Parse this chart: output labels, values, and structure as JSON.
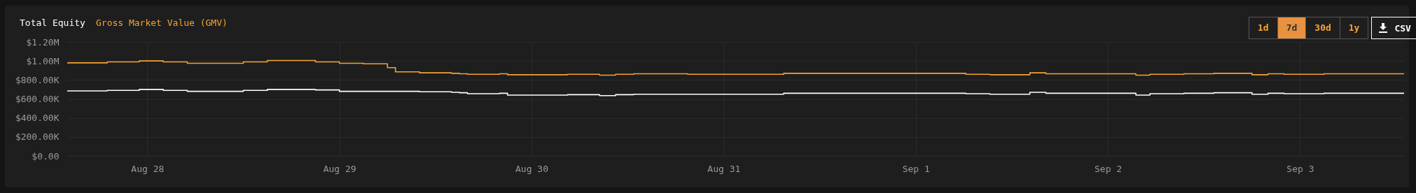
{
  "chart_data": {
    "type": "step",
    "x": [
      "--08-27T14:00",
      "--08-27T19:00",
      "--08-27T23:00",
      "--08-28T02:00",
      "--08-28T05:00",
      "--08-28T12:00",
      "--08-28T15:00",
      "--08-28T21:00",
      "--08-29T00:00",
      "--08-29T03:00",
      "--08-29T06:00",
      "--08-29T07:00",
      "--08-29T10:00",
      "--08-29T14:00",
      "--08-29T15:00",
      "--08-29T16:00",
      "--08-29T20:00",
      "--08-29T21:00",
      "--08-30T04:30",
      "--08-30T08:30",
      "--08-30T10:30",
      "--08-30T12:45",
      "--08-30T19:30",
      "--08-31T07:30",
      "--09-01T06:15",
      "--09-01T09:15",
      "--09-01T14:15",
      "--09-01T16:15",
      "--09-02T03:30",
      "--09-02T05:15",
      "--09-02T09:30",
      "--09-02T13:15",
      "--09-02T18:00",
      "--09-02T20:00",
      "--09-02T22:00",
      "--09-03T03:00",
      "--09-03T13:00"
    ],
    "series": [
      {
        "name": "Total Equity",
        "color": "#ffffff",
        "values": [
          685000,
          690000,
          700000,
          690000,
          680000,
          690000,
          700000,
          695000,
          680000,
          680000,
          680000,
          680000,
          675000,
          670000,
          665000,
          655000,
          660000,
          640000,
          645000,
          635000,
          645000,
          650000,
          650000,
          660000,
          655000,
          650000,
          670000,
          660000,
          640000,
          655000,
          660000,
          665000,
          650000,
          660000,
          655000,
          660000,
          660000
        ]
      },
      {
        "name": "Gross Market Value (GMV)",
        "color": "#f7a233",
        "values": [
          980000,
          990000,
          1000000,
          990000,
          975000,
          990000,
          1005000,
          990000,
          975000,
          970000,
          930000,
          885000,
          875000,
          870000,
          865000,
          860000,
          865000,
          855000,
          860000,
          850000,
          860000,
          865000,
          860000,
          870000,
          860000,
          855000,
          875000,
          865000,
          850000,
          860000,
          865000,
          870000,
          855000,
          865000,
          860000,
          865000,
          865000
        ]
      }
    ],
    "xlim": [
      "--08-27T14:00",
      "--09-03T13:00"
    ],
    "xticks": [
      {
        "value": "--08-28",
        "label": "Aug 28"
      },
      {
        "value": "--08-29",
        "label": "Aug 29"
      },
      {
        "value": "--08-30",
        "label": "Aug 30"
      },
      {
        "value": "--08-31",
        "label": "Aug 31"
      },
      {
        "value": "--09-01",
        "label": "Sep 1"
      },
      {
        "value": "--09-02",
        "label": "Sep 2"
      },
      {
        "value": "--09-03",
        "label": "Sep 3"
      }
    ],
    "ylim": [
      0,
      1200000
    ],
    "yticks": [
      {
        "value": 0,
        "label": "$0.00"
      },
      {
        "value": 200000,
        "label": "$200.00K"
      },
      {
        "value": 400000,
        "label": "$400.00K"
      },
      {
        "value": 600000,
        "label": "$600.00K"
      },
      {
        "value": 800000,
        "label": "$800.00K"
      },
      {
        "value": 1000000,
        "label": "$1.00M"
      },
      {
        "value": 1200000,
        "label": "$1.20M"
      }
    ],
    "grid": true,
    "legend": "top left",
    "annotations": [
      "1d",
      "7d",
      "30d",
      "1y",
      "CSV"
    ]
  }
}
